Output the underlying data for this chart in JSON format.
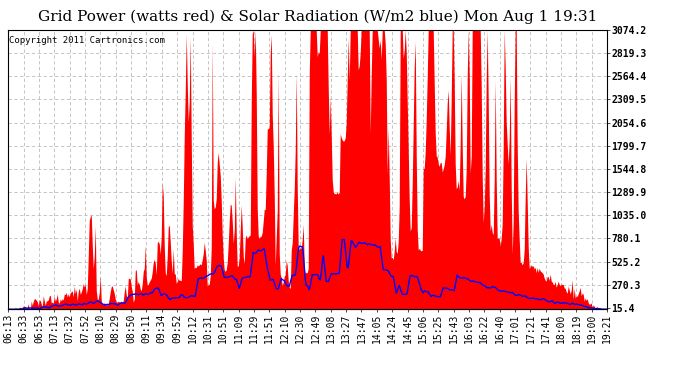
{
  "title": "Grid Power (watts red) & Solar Radiation (W/m2 blue) Mon Aug 1 19:31",
  "copyright": "Copyright 2011 Cartronics.com",
  "y_right_ticks": [
    15.4,
    270.3,
    525.2,
    780.1,
    1035.0,
    1289.9,
    1544.8,
    1799.7,
    2054.6,
    2309.5,
    2564.4,
    2819.3,
    3074.2
  ],
  "y_min": 0,
  "y_max": 3074.2,
  "bg_color": "#ffffff",
  "grid_color": "#bbbbbb",
  "red_color": "#ff0000",
  "blue_color": "#0000ff",
  "title_fontsize": 11,
  "tick_fontsize": 7,
  "copyright_fontsize": 6.5,
  "x_labels": [
    "06:13",
    "06:33",
    "06:53",
    "07:13",
    "07:32",
    "07:52",
    "08:10",
    "08:29",
    "08:50",
    "09:11",
    "09:34",
    "09:52",
    "10:12",
    "10:31",
    "10:51",
    "11:09",
    "11:29",
    "11:51",
    "12:10",
    "12:30",
    "12:49",
    "13:08",
    "13:27",
    "13:47",
    "14:05",
    "14:24",
    "14:45",
    "15:06",
    "15:25",
    "15:43",
    "16:03",
    "16:22",
    "16:40",
    "17:01",
    "17:21",
    "17:41",
    "18:00",
    "18:19",
    "19:00",
    "19:21"
  ]
}
